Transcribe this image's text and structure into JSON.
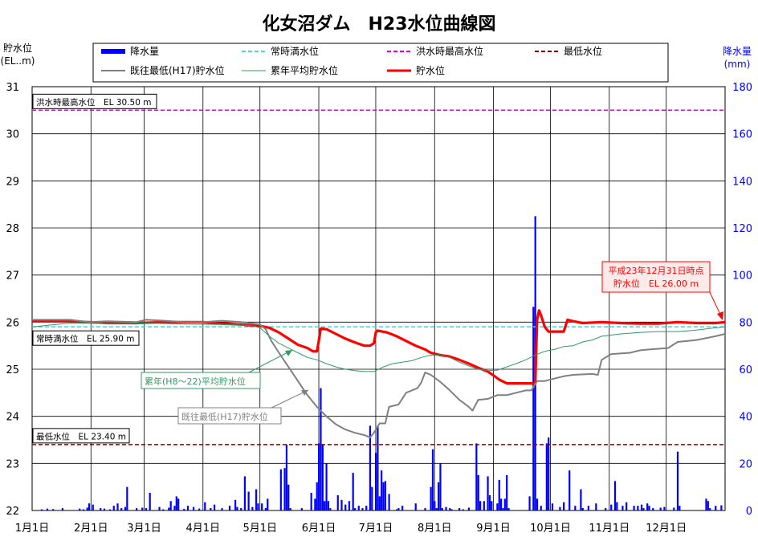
{
  "chart_data": {
    "type": "bar+line",
    "title": "化女沼ダム　H23水位曲線図",
    "y_left_label": [
      "貯水位",
      "(EL..m)"
    ],
    "y_right_label": [
      "降水量",
      "(mm)"
    ],
    "y_left_range": [
      22,
      31
    ],
    "y_left_ticks": [
      "22",
      "23",
      "24",
      "25",
      "26",
      "27",
      "28",
      "29",
      "30",
      "31"
    ],
    "y_right_range": [
      0,
      180
    ],
    "y_right_ticks": [
      "0",
      "20",
      "40",
      "60",
      "80",
      "100",
      "120",
      "140",
      "160",
      "180"
    ],
    "x_range_days": [
      0,
      365
    ],
    "x_ticks": [
      "1月1日",
      "2月1日",
      "3月1日",
      "4月1日",
      "5月1日",
      "6月1日",
      "7月1日",
      "8月1日",
      "9月1日",
      "10月1日",
      "11月1日",
      "12月1日"
    ],
    "x_tick_days": [
      0,
      31,
      59,
      90,
      120,
      151,
      181,
      212,
      243,
      273,
      304,
      334
    ],
    "legend": [
      {
        "label": "降水量",
        "style": "bar",
        "color": "#0000FF"
      },
      {
        "label": "常時満水位",
        "style": "dashed",
        "color": "#33DDEE"
      },
      {
        "label": "洪水時最高水位",
        "style": "dashed",
        "color": "#DD00DD"
      },
      {
        "label": "最低水位",
        "style": "dashed",
        "color": "#880000"
      },
      {
        "label": "既往最低(H17)貯水位",
        "style": "line",
        "color": "#808080"
      },
      {
        "label": "累年平均貯水位",
        "style": "line",
        "color": "#339966"
      },
      {
        "label": "貯水位",
        "style": "line",
        "color": "#FF0000"
      }
    ],
    "reference_lines": [
      {
        "name": "洪水時最高水位",
        "value": 30.5,
        "label": "洪水時最高水位　EL 30.50 m",
        "color": "#DD00DD"
      },
      {
        "name": "常時満水位",
        "value": 25.9,
        "label": "常時満水位　EL 25.90 m",
        "color": "#33DDEE"
      },
      {
        "name": "最低水位",
        "value": 23.4,
        "label": "最低水位　EL 23.40 m",
        "color": "#880000"
      }
    ],
    "annotations": {
      "avg_label": "累年(H8～22)平均貯水位",
      "min_label": "既往最低(H17)貯水位",
      "final_label_1": "平成23年12月31日時点",
      "final_label_2": "貯水位　EL 26.00 m"
    },
    "series": [
      {
        "name": "貯水位",
        "color": "#FF0000",
        "points": [
          [
            0,
            26.02
          ],
          [
            20,
            26.02
          ],
          [
            40,
            25.98
          ],
          [
            55,
            25.98
          ],
          [
            70,
            26.0
          ],
          [
            90,
            26.0
          ],
          [
            100,
            25.97
          ],
          [
            110,
            25.95
          ],
          [
            115,
            25.93
          ],
          [
            120,
            25.92
          ],
          [
            125,
            25.88
          ],
          [
            130,
            25.78
          ],
          [
            135,
            25.65
          ],
          [
            140,
            25.52
          ],
          [
            145,
            25.45
          ],
          [
            148,
            25.38
          ],
          [
            150,
            25.38
          ],
          [
            151,
            25.6
          ],
          [
            152,
            25.86
          ],
          [
            155,
            25.85
          ],
          [
            160,
            25.75
          ],
          [
            165,
            25.65
          ],
          [
            170,
            25.57
          ],
          [
            175,
            25.5
          ],
          [
            178,
            25.5
          ],
          [
            180,
            25.55
          ],
          [
            181,
            25.78
          ],
          [
            182,
            25.82
          ],
          [
            187,
            25.78
          ],
          [
            192,
            25.7
          ],
          [
            197,
            25.6
          ],
          [
            202,
            25.5
          ],
          [
            207,
            25.42
          ],
          [
            210,
            25.35
          ],
          [
            215,
            25.3
          ],
          [
            220,
            25.27
          ],
          [
            225,
            25.2
          ],
          [
            230,
            25.12
          ],
          [
            235,
            25.03
          ],
          [
            240,
            24.95
          ],
          [
            243,
            24.87
          ],
          [
            246,
            24.78
          ],
          [
            250,
            24.7
          ],
          [
            255,
            24.7
          ],
          [
            265,
            24.7
          ],
          [
            266,
            26.05
          ],
          [
            267,
            26.25
          ],
          [
            268,
            26.15
          ],
          [
            270,
            25.9
          ],
          [
            272,
            25.8
          ],
          [
            275,
            25.8
          ],
          [
            280,
            25.8
          ],
          [
            282,
            26.05
          ],
          [
            285,
            26.02
          ],
          [
            290,
            25.98
          ],
          [
            300,
            26.0
          ],
          [
            310,
            25.98
          ],
          [
            320,
            25.97
          ],
          [
            330,
            25.97
          ],
          [
            340,
            26.0
          ],
          [
            350,
            25.98
          ],
          [
            360,
            25.98
          ],
          [
            365,
            26.0
          ]
        ]
      },
      {
        "name": "累年平均貯水位",
        "color": "#339966",
        "points": [
          [
            0,
            25.9
          ],
          [
            20,
            25.98
          ],
          [
            40,
            25.97
          ],
          [
            60,
            25.98
          ],
          [
            80,
            25.96
          ],
          [
            100,
            25.95
          ],
          [
            115,
            25.93
          ],
          [
            120,
            25.88
          ],
          [
            125,
            25.7
          ],
          [
            130,
            25.55
          ],
          [
            135,
            25.45
          ],
          [
            140,
            25.35
          ],
          [
            145,
            25.25
          ],
          [
            150,
            25.2
          ],
          [
            155,
            25.12
          ],
          [
            160,
            25.05
          ],
          [
            165,
            25.0
          ],
          [
            170,
            24.97
          ],
          [
            175,
            24.95
          ],
          [
            180,
            24.95
          ],
          [
            185,
            25.05
          ],
          [
            190,
            25.12
          ],
          [
            195,
            25.15
          ],
          [
            200,
            25.18
          ],
          [
            205,
            25.25
          ],
          [
            210,
            25.3
          ],
          [
            215,
            25.3
          ],
          [
            220,
            25.25
          ],
          [
            225,
            25.15
          ],
          [
            230,
            25.07
          ],
          [
            235,
            25.0
          ],
          [
            240,
            24.97
          ],
          [
            245,
            24.98
          ],
          [
            250,
            25.05
          ],
          [
            255,
            25.12
          ],
          [
            260,
            25.2
          ],
          [
            265,
            25.3
          ],
          [
            270,
            25.38
          ],
          [
            275,
            25.42
          ],
          [
            280,
            25.48
          ],
          [
            285,
            25.5
          ],
          [
            290,
            25.58
          ],
          [
            295,
            25.62
          ],
          [
            300,
            25.7
          ],
          [
            310,
            25.75
          ],
          [
            320,
            25.78
          ],
          [
            330,
            25.8
          ],
          [
            340,
            25.8
          ],
          [
            350,
            25.83
          ],
          [
            360,
            25.88
          ],
          [
            365,
            25.9
          ]
        ]
      },
      {
        "name": "既往最低(H17)貯水位",
        "color": "#808080",
        "points": [
          [
            0,
            26.05
          ],
          [
            20,
            26.05
          ],
          [
            30,
            26.0
          ],
          [
            40,
            26.02
          ],
          [
            55,
            26.0
          ],
          [
            60,
            26.05
          ],
          [
            70,
            26.03
          ],
          [
            80,
            26.0
          ],
          [
            90,
            26.0
          ],
          [
            100,
            26.03
          ],
          [
            110,
            26.0
          ],
          [
            120,
            25.95
          ],
          [
            123,
            25.85
          ],
          [
            126,
            25.6
          ],
          [
            130,
            25.35
          ],
          [
            135,
            25.05
          ],
          [
            140,
            24.75
          ],
          [
            145,
            24.45
          ],
          [
            150,
            24.2
          ],
          [
            155,
            24.0
          ],
          [
            160,
            23.83
          ],
          [
            165,
            23.72
          ],
          [
            170,
            23.65
          ],
          [
            175,
            23.6
          ],
          [
            178,
            23.55
          ],
          [
            180,
            23.65
          ],
          [
            183,
            23.85
          ],
          [
            186,
            23.85
          ],
          [
            188,
            24.2
          ],
          [
            193,
            24.25
          ],
          [
            197,
            24.5
          ],
          [
            200,
            24.55
          ],
          [
            203,
            24.6
          ],
          [
            205,
            24.72
          ],
          [
            207,
            24.93
          ],
          [
            210,
            24.88
          ],
          [
            215,
            24.73
          ],
          [
            220,
            24.55
          ],
          [
            225,
            24.35
          ],
          [
            230,
            24.2
          ],
          [
            232,
            24.12
          ],
          [
            235,
            24.35
          ],
          [
            240,
            24.37
          ],
          [
            242,
            24.4
          ],
          [
            245,
            24.45
          ],
          [
            250,
            24.45
          ],
          [
            255,
            24.5
          ],
          [
            260,
            24.55
          ],
          [
            263,
            24.55
          ],
          [
            266,
            24.75
          ],
          [
            270,
            24.75
          ],
          [
            275,
            24.8
          ],
          [
            280,
            24.85
          ],
          [
            285,
            24.88
          ],
          [
            295,
            24.9
          ],
          [
            298,
            24.88
          ],
          [
            300,
            25.2
          ],
          [
            305,
            25.32
          ],
          [
            315,
            25.35
          ],
          [
            320,
            25.4
          ],
          [
            325,
            25.42
          ],
          [
            335,
            25.45
          ],
          [
            340,
            25.58
          ],
          [
            350,
            25.62
          ],
          [
            360,
            25.7
          ],
          [
            365,
            25.75
          ]
        ]
      }
    ],
    "precipitation": [
      [
        5,
        0.5
      ],
      [
        8,
        0.8
      ],
      [
        11,
        0.6
      ],
      [
        16,
        1
      ],
      [
        25,
        0.8
      ],
      [
        27,
        0.5
      ],
      [
        29,
        1.2
      ],
      [
        30,
        3
      ],
      [
        32,
        2.5
      ],
      [
        36,
        1
      ],
      [
        38,
        0.8
      ],
      [
        41,
        0.5
      ],
      [
        43,
        2
      ],
      [
        45,
        3
      ],
      [
        47,
        1
      ],
      [
        49,
        1.5
      ],
      [
        50,
        10
      ],
      [
        55,
        1
      ],
      [
        58,
        1.2
      ],
      [
        60,
        1
      ],
      [
        62,
        7.5
      ],
      [
        67,
        1.5
      ],
      [
        69,
        0.5
      ],
      [
        72,
        1.2
      ],
      [
        73,
        4
      ],
      [
        75,
        2
      ],
      [
        76,
        6
      ],
      [
        77,
        5
      ],
      [
        80,
        0.7
      ],
      [
        82,
        2
      ],
      [
        85,
        1.5
      ],
      [
        88,
        0.8
      ],
      [
        91,
        3.5
      ],
      [
        94,
        1
      ],
      [
        96,
        2.5
      ],
      [
        100,
        1
      ],
      [
        104,
        2
      ],
      [
        107,
        4.5
      ],
      [
        108,
        1.5
      ],
      [
        110,
        1
      ],
      [
        112,
        14.5
      ],
      [
        114,
        8
      ],
      [
        116,
        1.5
      ],
      [
        118,
        9
      ],
      [
        119,
        3
      ],
      [
        121,
        3
      ],
      [
        123,
        1
      ],
      [
        124,
        5
      ],
      [
        131,
        17.5
      ],
      [
        133,
        18
      ],
      [
        134,
        28
      ],
      [
        135,
        11
      ],
      [
        136,
        1
      ],
      [
        142,
        1
      ],
      [
        147,
        7.5
      ],
      [
        149,
        5
      ],
      [
        150,
        12
      ],
      [
        151,
        28.5
      ],
      [
        152,
        52
      ],
      [
        153,
        28
      ],
      [
        154,
        4
      ],
      [
        155,
        20
      ],
      [
        156,
        4
      ],
      [
        157,
        1
      ],
      [
        161,
        6.5
      ],
      [
        163,
        4.5
      ],
      [
        165,
        2.5
      ],
      [
        167,
        4
      ],
      [
        169,
        16
      ],
      [
        170,
        1
      ],
      [
        172,
        2
      ],
      [
        174,
        1
      ],
      [
        176,
        2
      ],
      [
        178,
        36
      ],
      [
        179,
        10
      ],
      [
        181,
        24.5
      ],
      [
        182,
        36
      ],
      [
        183,
        6
      ],
      [
        184,
        17
      ],
      [
        185,
        12
      ],
      [
        186,
        12.5
      ],
      [
        188,
        7
      ],
      [
        192,
        0.5
      ],
      [
        193,
        1
      ],
      [
        195,
        2
      ],
      [
        202,
        3
      ],
      [
        207,
        1
      ],
      [
        210,
        10
      ],
      [
        211,
        26
      ],
      [
        212,
        4
      ],
      [
        213,
        1
      ],
      [
        214,
        12
      ],
      [
        215,
        20
      ],
      [
        216,
        1
      ],
      [
        218,
        1.5
      ],
      [
        220,
        1
      ],
      [
        221,
        0.5
      ],
      [
        225,
        1
      ],
      [
        227,
        0.5
      ],
      [
        230,
        1.2
      ],
      [
        234,
        28.5
      ],
      [
        235,
        15
      ],
      [
        236,
        4
      ],
      [
        238,
        4
      ],
      [
        240,
        14.5
      ],
      [
        241,
        6.5
      ],
      [
        242,
        4
      ],
      [
        245,
        3
      ],
      [
        246,
        13
      ],
      [
        247,
        5
      ],
      [
        248,
        1
      ],
      [
        249,
        5
      ],
      [
        250,
        15
      ],
      [
        251,
        1
      ],
      [
        262,
        6
      ],
      [
        264,
        86.5
      ],
      [
        265,
        125
      ],
      [
        266,
        5
      ],
      [
        268,
        2
      ],
      [
        271,
        28.5
      ],
      [
        272,
        31
      ],
      [
        274,
        3
      ],
      [
        278,
        1.5
      ],
      [
        280,
        3.5
      ],
      [
        283,
        17
      ],
      [
        286,
        2
      ],
      [
        289,
        9
      ],
      [
        290,
        1
      ],
      [
        293,
        2
      ],
      [
        297,
        3
      ],
      [
        302,
        1
      ],
      [
        305,
        2.5
      ],
      [
        307,
        12.5
      ],
      [
        308,
        3.5
      ],
      [
        311,
        2
      ],
      [
        313,
        3.5
      ],
      [
        317,
        2
      ],
      [
        319,
        2
      ],
      [
        321,
        2.5
      ],
      [
        322,
        1
      ],
      [
        324,
        3
      ],
      [
        325,
        2
      ],
      [
        327,
        1
      ],
      [
        331,
        1.2
      ],
      [
        333,
        1.5
      ],
      [
        338,
        1.2
      ],
      [
        340,
        25
      ],
      [
        341,
        2
      ],
      [
        355,
        5
      ],
      [
        356,
        4
      ],
      [
        357,
        1
      ],
      [
        360,
        2
      ],
      [
        363,
        2.2
      ]
    ]
  }
}
